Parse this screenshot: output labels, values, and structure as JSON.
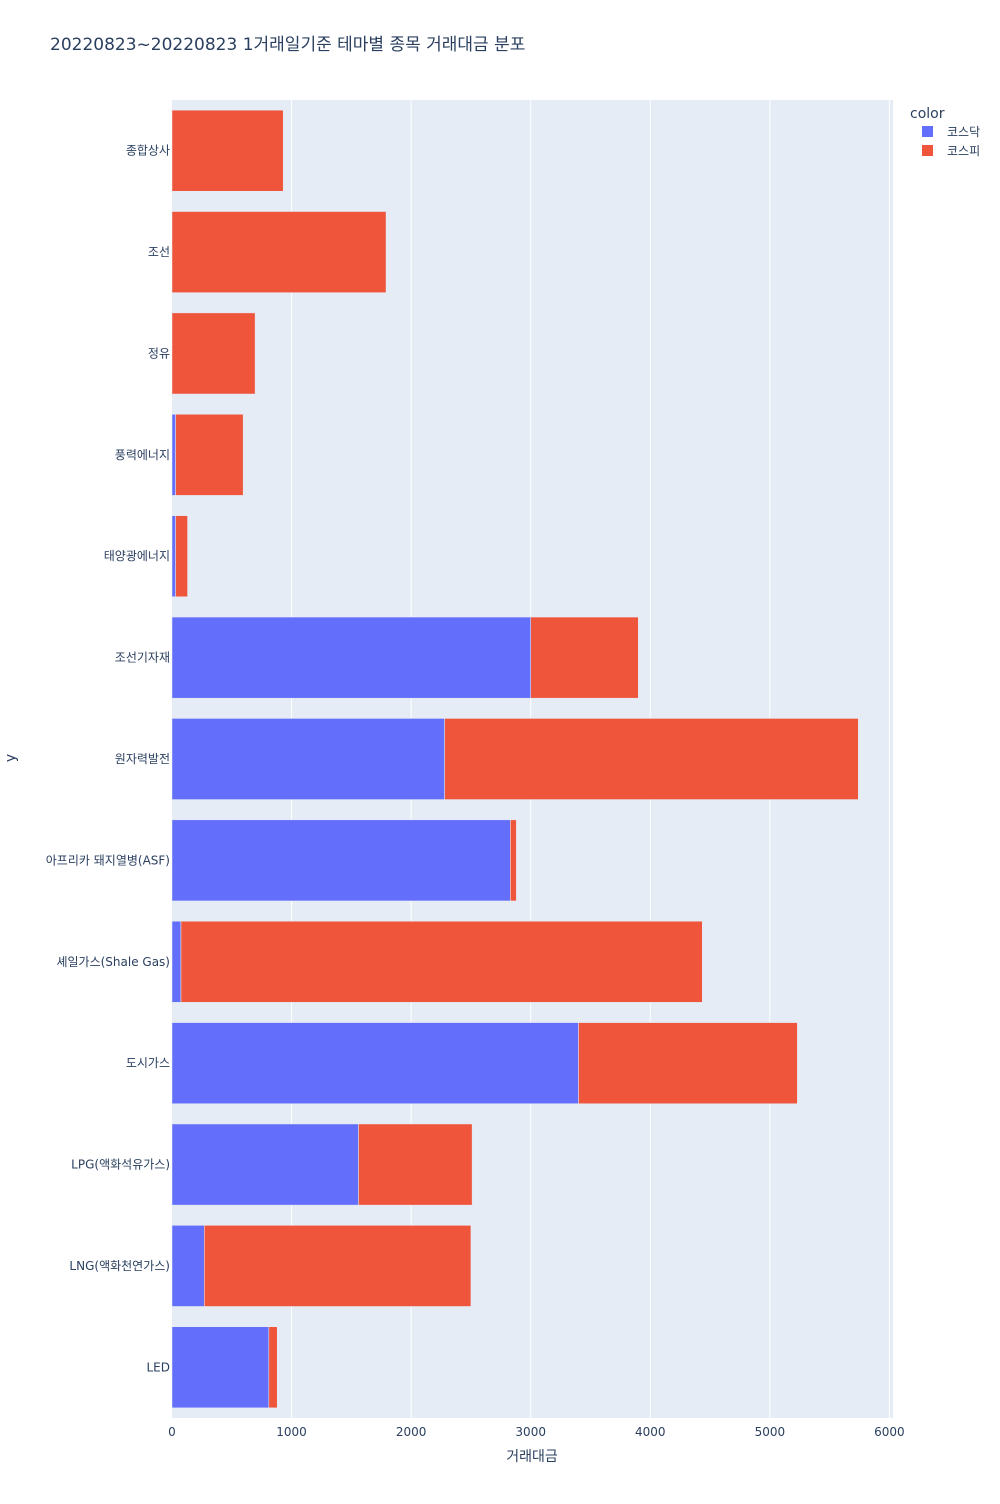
{
  "chart_data": {
    "type": "bar",
    "orientation": "horizontal",
    "barmode": "stack",
    "title": "20220823~20220823 1거래일기준 테마별 종목 거래대금 분포",
    "xlabel": "거래대금",
    "ylabel": "y",
    "xlim": [
      0,
      6000
    ],
    "xticks": [
      0,
      1000,
      2000,
      3000,
      4000,
      5000,
      6000
    ],
    "xtick_labels": [
      "0",
      "1000",
      "2000",
      "3000",
      "4000",
      "5000",
      "6000"
    ],
    "grid": true,
    "legend": {
      "title": "color",
      "position": "top-right"
    },
    "categories": [
      "종합상사",
      "조선",
      "정유",
      "풍력에너지",
      "태양광에너지",
      "조선기자재",
      "원자력발전",
      "아프리카 돼지열병(ASF)",
      "셰일가스(Shale Gas)",
      "도시가스",
      "LPG(액화석유가스)",
      "LNG(액화천연가스)",
      "LED"
    ],
    "series": [
      {
        "name": "코스닥",
        "color": "#636efa",
        "values": [
          0,
          0,
          0,
          30,
          30,
          3000,
          2280,
          2830,
          75,
          3400,
          1560,
          270,
          810
        ]
      },
      {
        "name": "코스피",
        "color": "#ef553b",
        "values": [
          930,
          1790,
          695,
          565,
          100,
          900,
          3460,
          50,
          4360,
          1830,
          950,
          2230,
          70
        ]
      }
    ]
  }
}
